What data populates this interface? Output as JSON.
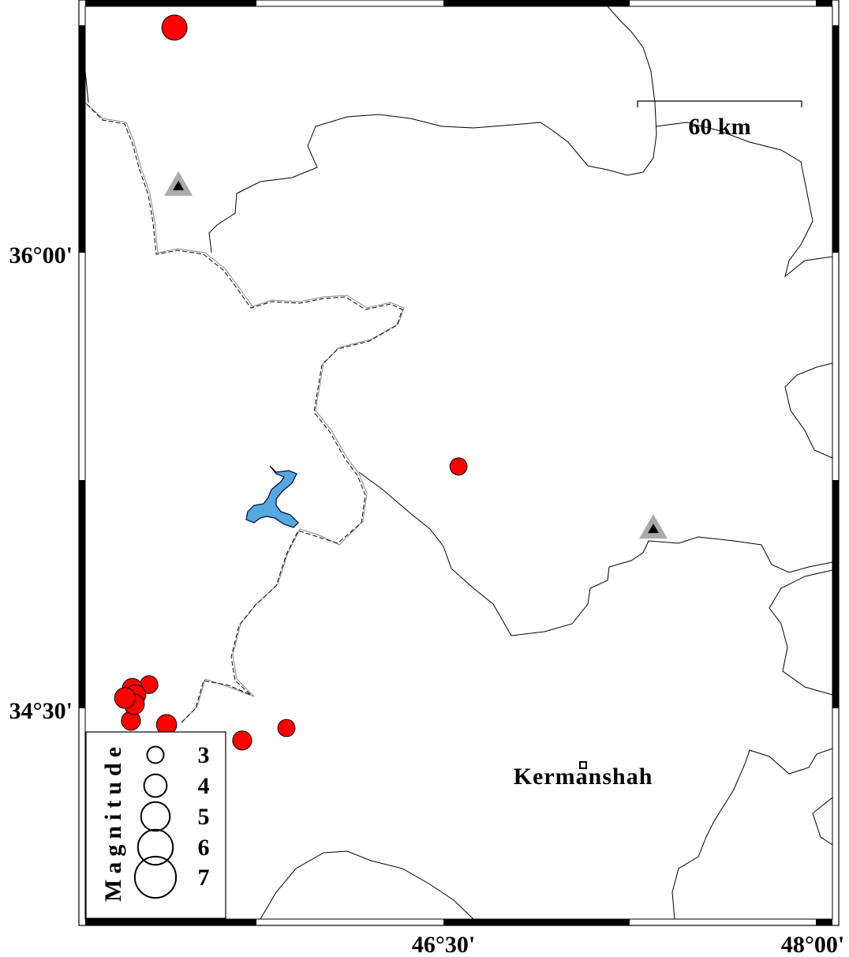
{
  "map": {
    "frame_labels": {
      "lat_top": "36°00'",
      "lat_bottom": "34°30'",
      "lon_mid": "46°30'",
      "lon_right": "48°00'"
    },
    "scale_bar": {
      "label": "60 km"
    },
    "legend": {
      "title": "Magnitude",
      "magnitudes": [
        3,
        4,
        5,
        6,
        7
      ]
    },
    "cities": [
      {
        "name": "Kermanshah",
        "lon": 47.065,
        "lat": 34.313
      }
    ],
    "stations": [
      {
        "lon": 45.428,
        "lat": 36.224
      },
      {
        "lon": 47.349,
        "lat": 35.095
      }
    ],
    "earthquakes": [
      {
        "lon": 45.412,
        "lat": 36.741,
        "mag": 4.4
      },
      {
        "lon": 46.561,
        "lat": 35.296,
        "mag": 3.1
      },
      {
        "lon": 45.865,
        "lat": 34.435,
        "mag": 3.1
      },
      {
        "lon": 45.686,
        "lat": 34.394,
        "mag": 3.4
      },
      {
        "lon": 45.38,
        "lat": 34.446,
        "mag": 3.6
      },
      {
        "lon": 45.236,
        "lat": 34.459,
        "mag": 3.4
      },
      {
        "lon": 45.309,
        "lat": 34.578,
        "mag": 3.2
      },
      {
        "lon": 45.242,
        "lat": 34.565,
        "mag": 3.6
      },
      {
        "lon": 45.255,
        "lat": 34.544,
        "mag": 3.6
      },
      {
        "lon": 45.249,
        "lat": 34.513,
        "mag": 3.6
      },
      {
        "lon": 45.212,
        "lat": 34.534,
        "mag": 3.7
      }
    ],
    "colors": {
      "earthquake": "#ff0000",
      "station_outer": "#aaaaaa",
      "station_inner": "#000000",
      "lake": "#55a8e0"
    }
  }
}
